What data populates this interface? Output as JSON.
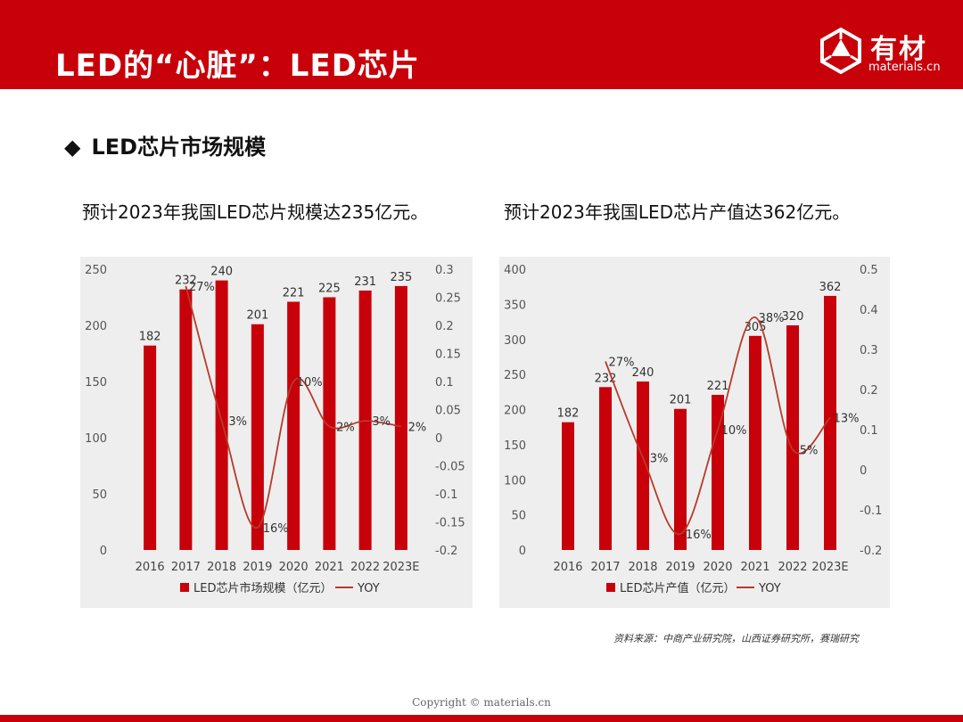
{
  "header": {
    "title": "LED的“心脏”：LED芯片",
    "logo_text": "有材",
    "logo_sub": "materials.cn",
    "bg_color": "#c8000a"
  },
  "section": {
    "bullet": "◆",
    "title": "LED芯片市场规模"
  },
  "left_subtitle": "预计2023年我国LED芯片规模达235亿元。",
  "right_subtitle": "预计2023年我国LED芯片产值达362亿元。",
  "source": "资料来源：中商产业研究院，山西证券研究所，赛瑞研究",
  "copyright": "Copyright © materials.cn",
  "chart_data": [
    {
      "type": "bar",
      "categories": [
        "2016",
        "2017",
        "2018",
        "2019",
        "2020",
        "2021",
        "2022",
        "2023E"
      ],
      "series": [
        {
          "name": "LED芯片市场规模（亿元）",
          "type": "bar",
          "axis": "left",
          "color": "#c8000a",
          "values": [
            182,
            232,
            240,
            201,
            221,
            225,
            231,
            235
          ]
        },
        {
          "name": "YOY",
          "type": "line",
          "axis": "right",
          "color": "#b83a2a",
          "values": [
            null,
            0.27,
            0.03,
            -0.16,
            0.1,
            0.02,
            0.03,
            0.02
          ],
          "labels": [
            "",
            "27%",
            "3%",
            "-16%",
            "10%",
            "2%",
            "3%",
            "2%"
          ]
        }
      ],
      "ylim": [
        0,
        250
      ],
      "yticks": [
        "0",
        "50",
        "100",
        "150",
        "200",
        "250"
      ],
      "ylim_right": [
        -0.2,
        0.3
      ],
      "yticks_right": [
        "-0.2",
        "-0.15",
        "-0.1",
        "-0.05",
        "0",
        "0.05",
        "0.1",
        "0.15",
        "0.2",
        "0.25",
        "0.3"
      ],
      "legend_position": "bottom"
    },
    {
      "type": "bar",
      "categories": [
        "2016",
        "2017",
        "2018",
        "2019",
        "2020",
        "2021",
        "2022",
        "2023E"
      ],
      "series": [
        {
          "name": "LED芯片产值（亿元）",
          "type": "bar",
          "axis": "left",
          "color": "#c8000a",
          "values": [
            182,
            232,
            240,
            201,
            221,
            305,
            320,
            362
          ]
        },
        {
          "name": "YOY",
          "type": "line",
          "axis": "right",
          "color": "#b83a2a",
          "values": [
            null,
            0.27,
            0.03,
            -0.16,
            0.1,
            0.38,
            0.05,
            0.13
          ],
          "labels": [
            "",
            "27%",
            "3%",
            "-16%",
            "10%",
            "38%",
            "5%",
            "13%"
          ]
        }
      ],
      "ylim": [
        0,
        400
      ],
      "yticks": [
        "0",
        "50",
        "100",
        "150",
        "200",
        "250",
        "300",
        "350",
        "400"
      ],
      "ylim_right": [
        -0.2,
        0.5
      ],
      "yticks_right": [
        "-0.2",
        "-0.1",
        "0",
        "0.1",
        "0.2",
        "0.3",
        "0.4",
        "0.5"
      ],
      "legend_position": "bottom"
    }
  ]
}
